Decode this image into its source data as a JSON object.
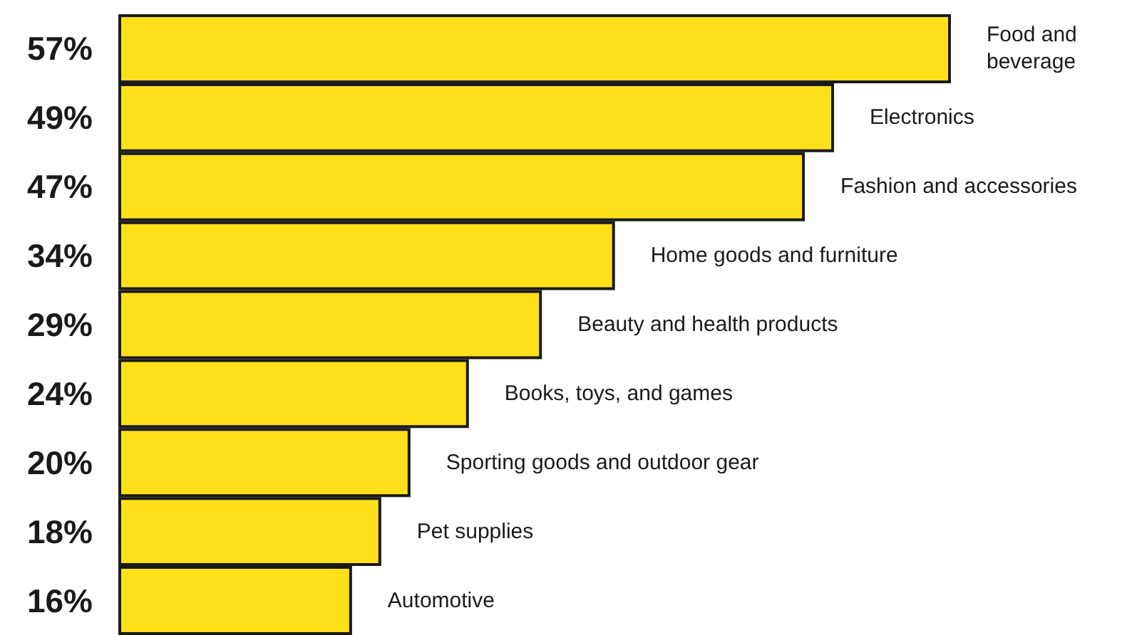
{
  "chart_data": {
    "type": "bar",
    "orientation": "horizontal",
    "categories": [
      "Food and beverage",
      "Electronics",
      "Fashion and accessories",
      "Home goods and furniture",
      "Beauty and health products",
      "Books, toys, and games",
      "Sporting goods and outdoor gear",
      "Pet supplies",
      "Automotive"
    ],
    "values": [
      57,
      49,
      47,
      34,
      29,
      24,
      20,
      18,
      16
    ],
    "value_labels": [
      "57%",
      "49%",
      "47%",
      "34%",
      "29%",
      "24%",
      "20%",
      "18%",
      "16%"
    ],
    "color": "#fde01a"
  }
}
